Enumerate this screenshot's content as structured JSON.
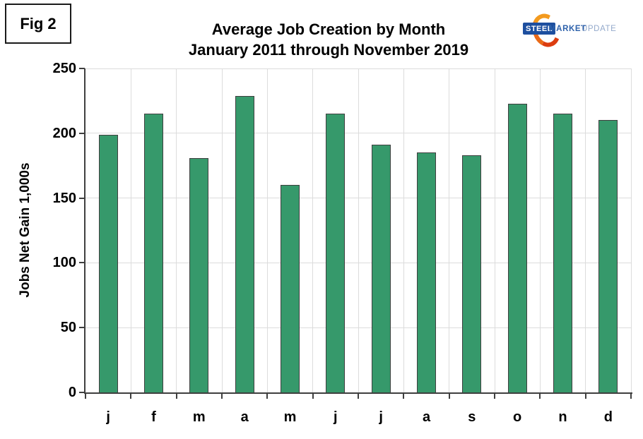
{
  "figure_label": "Fig 2",
  "title": {
    "line1": "Average Job Creation by Month",
    "line2": "January 2011 through November 2019"
  },
  "logo": {
    "steel": "STEEL",
    "market": "MARKET",
    "update": "UPDATE",
    "steel_bg": "#1D4F9F",
    "market_color": "#2E62AB",
    "update_color": "#93A9CB",
    "crescent_color": "#EA6A17"
  },
  "y_axis": {
    "label": "Jobs Net Gain 1,000s",
    "ticks": [
      "250",
      "200",
      "150",
      "100",
      "50",
      "0"
    ]
  },
  "x_axis": {
    "labels": [
      "j",
      "f",
      "m",
      "a",
      "m",
      "j",
      "j",
      "a",
      "s",
      "o",
      "n",
      "d"
    ]
  },
  "chart_data": {
    "type": "bar",
    "categories": [
      "j",
      "f",
      "m",
      "a",
      "m",
      "j",
      "j",
      "a",
      "s",
      "o",
      "n",
      "d"
    ],
    "values": [
      199,
      215,
      181,
      229,
      160,
      215,
      191,
      185,
      183,
      223,
      215,
      210
    ],
    "title": "Average Job Creation by Month",
    "subtitle": "January 2011 through November 2019",
    "xlabel": "",
    "ylabel": "Jobs Net Gain 1,000s",
    "ylim": [
      0,
      250
    ],
    "ytick_step": 50,
    "grid": true,
    "legend": "none",
    "bar_color": "#36996B",
    "bar_border_color": "#3F3F3F",
    "gridline_color": "#DCDCDC",
    "axis_color": "#3F3F3F"
  }
}
